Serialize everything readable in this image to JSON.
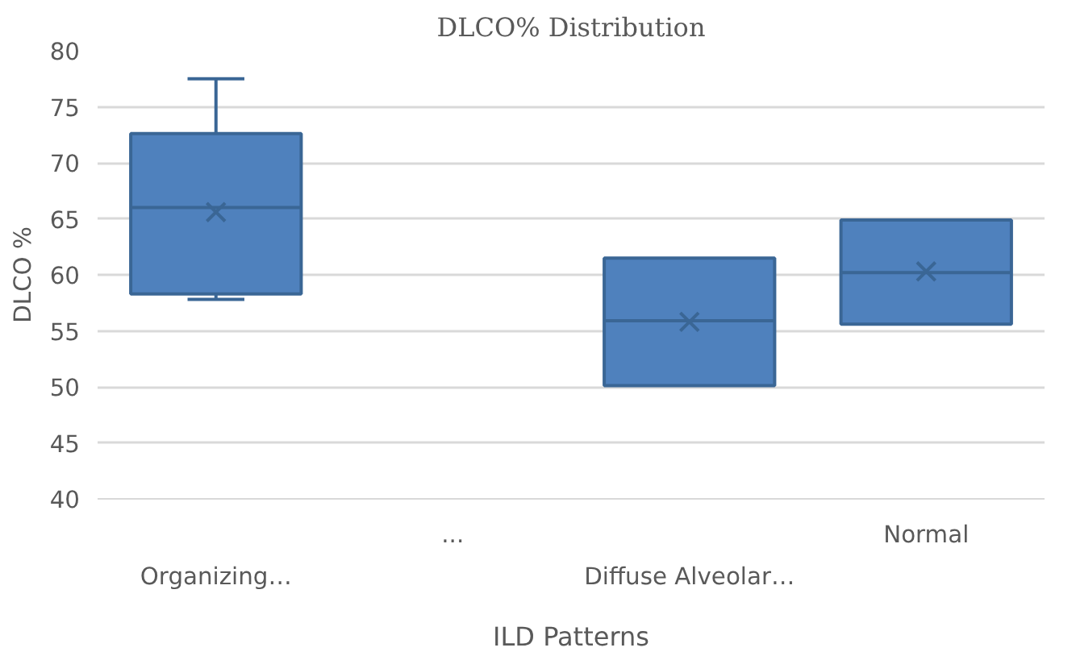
{
  "chart_data": {
    "type": "box",
    "title": "DLCO% Distribution",
    "xlabel": "ILD Patterns",
    "ylabel": "DLCO %",
    "categories": [
      "Organizing…",
      "...",
      "Diffuse Alveolar…",
      "Normal"
    ],
    "boxes": [
      {
        "low": 57.8,
        "q1": 58.3,
        "median": 66,
        "q3": 72.6,
        "high": 77.5,
        "mean": 65.6
      },
      null,
      {
        "low": 50.1,
        "q1": 50.1,
        "median": 55.9,
        "q3": 61.5,
        "high": 61.5,
        "mean": 55.8
      },
      {
        "low": 55.6,
        "q1": 55.6,
        "median": 60.2,
        "q3": 64.9,
        "high": 64.9,
        "mean": 60.3
      }
    ],
    "color": "#4f81bd",
    "ylim": [
      40,
      80
    ],
    "yticks": [
      40,
      45,
      50,
      55,
      60,
      65,
      70,
      75,
      80
    ],
    "grid": "y"
  }
}
